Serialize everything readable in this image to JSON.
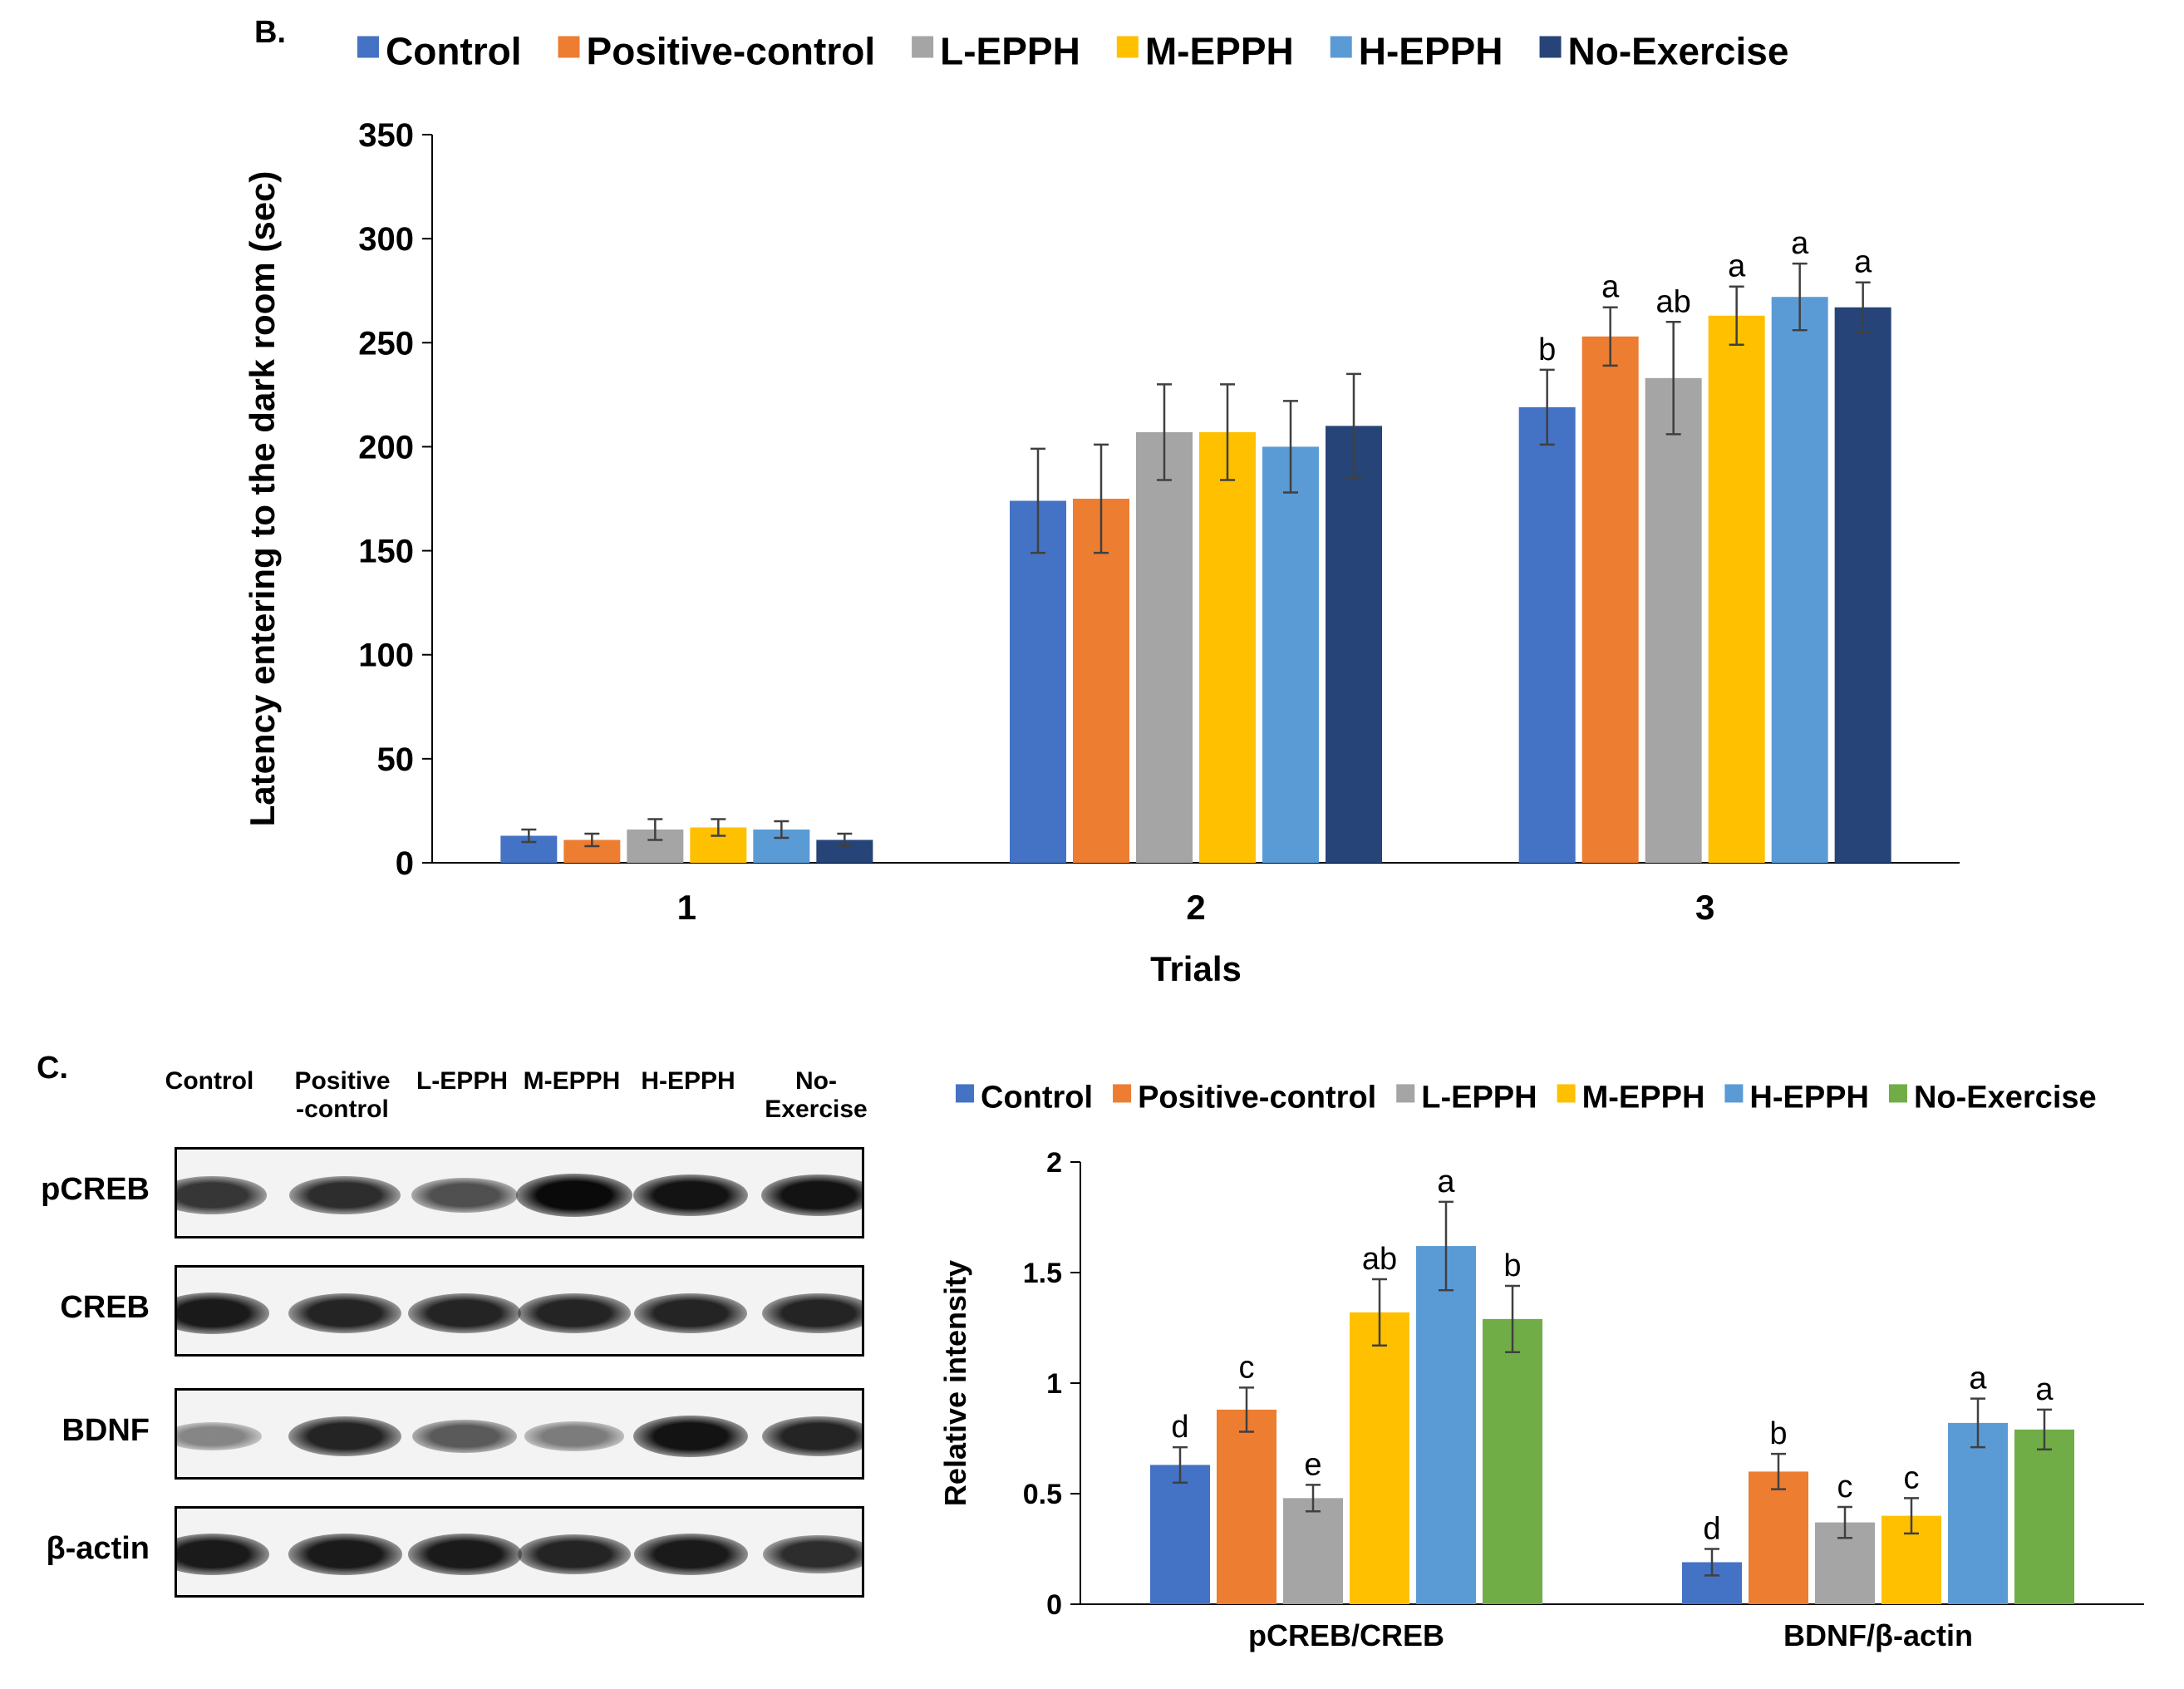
{
  "colors": {
    "Control": "#4472c4",
    "Positive-control": "#ed7d31",
    "L-EPPH": "#a5a5a5",
    "M-EPPH": "#ffc000",
    "H-EPPH": "#5b9bd5",
    "No-Exercise-B": "#264478",
    "No-Exercise-C": "#70ad47"
  },
  "panel_b": {
    "label": "B.",
    "chart_data": {
      "type": "bar",
      "title": "",
      "xlabel": "Trials",
      "ylabel": "Latency entering to the dark room (sec)",
      "ylim": [
        0,
        350
      ],
      "yticks": [
        "0",
        "50",
        "100",
        "150",
        "200",
        "250",
        "300",
        "350"
      ],
      "categories": [
        "1",
        "2",
        "3"
      ],
      "series": [
        {
          "name": "Control",
          "values": [
            13,
            174,
            219
          ],
          "errors": [
            3,
            25,
            18
          ],
          "letters": [
            "",
            "",
            "b"
          ]
        },
        {
          "name": "Positive-control",
          "values": [
            11,
            175,
            253
          ],
          "errors": [
            3,
            26,
            14
          ],
          "letters": [
            "",
            "",
            "a"
          ]
        },
        {
          "name": "L-EPPH",
          "values": [
            16,
            207,
            233
          ],
          "errors": [
            5,
            23,
            27
          ],
          "letters": [
            "",
            "",
            "ab"
          ]
        },
        {
          "name": "M-EPPH",
          "values": [
            17,
            207,
            263
          ],
          "errors": [
            4,
            23,
            14
          ],
          "letters": [
            "",
            "",
            "a"
          ]
        },
        {
          "name": "H-EPPH",
          "values": [
            16,
            200,
            272
          ],
          "errors": [
            4,
            22,
            16
          ],
          "letters": [
            "",
            "",
            "a"
          ]
        },
        {
          "name": "No-Exercise",
          "values": [
            11,
            210,
            267
          ],
          "errors": [
            3,
            25,
            12
          ],
          "letters": [
            "",
            "",
            "a"
          ]
        }
      ],
      "legend": "top"
    }
  },
  "panel_c": {
    "label": "C.",
    "blot": {
      "lanes": [
        "Control",
        "Positive\n-control",
        "L-EPPH",
        "M-EPPH",
        "H-EPPH",
        "No-\nExercise"
      ],
      "rows": [
        {
          "name": "pCREB",
          "intensity": [
            0.75,
            0.8,
            0.6,
            1.0,
            0.95,
            0.95
          ]
        },
        {
          "name": "CREB",
          "intensity": [
            0.9,
            0.85,
            0.85,
            0.85,
            0.85,
            0.85
          ]
        },
        {
          "name": "BDNF",
          "intensity": [
            0.3,
            0.85,
            0.55,
            0.35,
            0.95,
            0.85
          ]
        },
        {
          "name": "β-actin",
          "intensity": [
            0.9,
            0.9,
            0.9,
            0.85,
            0.9,
            0.8
          ]
        }
      ]
    },
    "chart_data": {
      "type": "bar",
      "title": "",
      "xlabel": "",
      "ylabel": "Relative intensity",
      "ylim": [
        0,
        2
      ],
      "yticks": [
        "0",
        "0.5",
        "1",
        "1.5",
        "2"
      ],
      "categories": [
        "pCREB/CREB",
        "BDNF/β-actin"
      ],
      "series": [
        {
          "name": "Control",
          "values": [
            0.63,
            0.19
          ],
          "errors": [
            0.08,
            0.06
          ],
          "letters": [
            "d",
            "d"
          ]
        },
        {
          "name": "Positive-control",
          "values": [
            0.88,
            0.6
          ],
          "errors": [
            0.1,
            0.08
          ],
          "letters": [
            "c",
            "b"
          ]
        },
        {
          "name": "L-EPPH",
          "values": [
            0.48,
            0.37
          ],
          "errors": [
            0.06,
            0.07
          ],
          "letters": [
            "e",
            "c"
          ]
        },
        {
          "name": "M-EPPH",
          "values": [
            1.32,
            0.4
          ],
          "errors": [
            0.15,
            0.08
          ],
          "letters": [
            "ab",
            "c"
          ]
        },
        {
          "name": "H-EPPH",
          "values": [
            1.62,
            0.82
          ],
          "errors": [
            0.2,
            0.11
          ],
          "letters": [
            "a",
            "a"
          ]
        },
        {
          "name": "No-Exercise",
          "values": [
            1.29,
            0.79
          ],
          "errors": [
            0.15,
            0.09
          ],
          "letters": [
            "b",
            "a"
          ]
        }
      ],
      "legend": "top"
    }
  }
}
